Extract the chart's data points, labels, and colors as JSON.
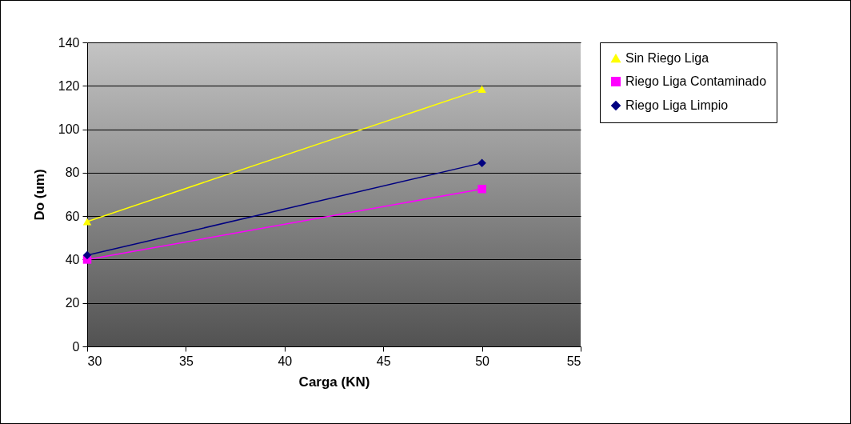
{
  "chart_data": {
    "type": "line",
    "xlabel": "Carga (KN)",
    "ylabel": "Do (um)",
    "x": [
      30,
      50
    ],
    "series": [
      {
        "name": "Sin Riego Liga",
        "color": "#ffff00",
        "marker": "triangle",
        "values": [
          57.5,
          118.5
        ]
      },
      {
        "name": "Riego Liga Contaminado",
        "color": "#ff00ff",
        "marker": "square",
        "values": [
          40,
          72.5
        ]
      },
      {
        "name": "Riego Liga Limpio",
        "color": "#000080",
        "marker": "diamond",
        "values": [
          42,
          84.5
        ]
      }
    ],
    "xlim": [
      30,
      55
    ],
    "xticks": [
      30,
      35,
      40,
      45,
      50,
      55
    ],
    "ylim": [
      0,
      140
    ],
    "yticks": [
      0,
      20,
      40,
      60,
      80,
      100,
      120,
      140
    ],
    "grid": "y",
    "legend": "right",
    "line_style": "solid"
  }
}
